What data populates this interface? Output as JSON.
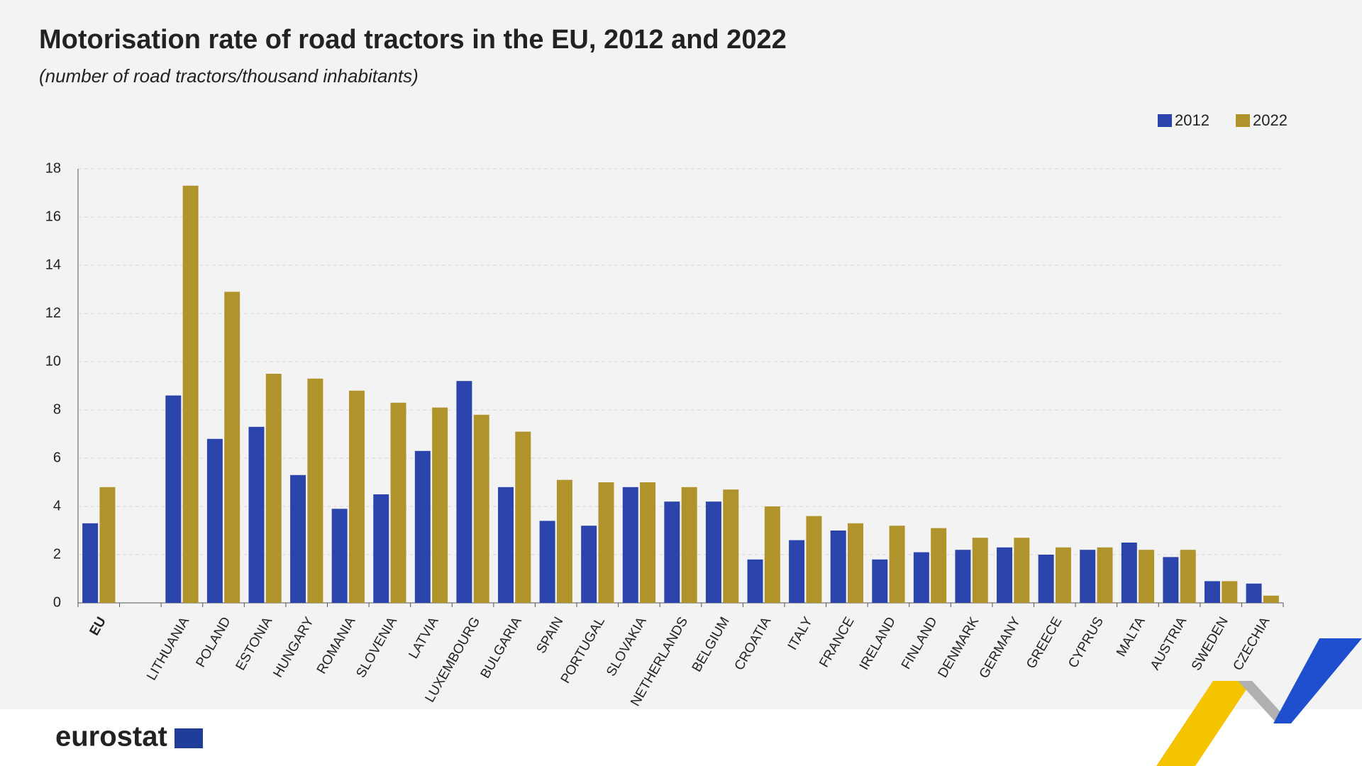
{
  "chart_data": {
    "type": "bar",
    "title": "Motorisation rate of road tractors in the EU, 2012 and 2022",
    "subtitle": "(number of road tractors/thousand inhabitants)",
    "categories": [
      "EU",
      null,
      "LITHUANIA",
      "POLAND",
      "ESTONIA",
      "HUNGARY",
      "ROMANIA",
      "SLOVENIA",
      "LATVIA",
      "LUXEMBOURG",
      "BULGARIA",
      "SPAIN",
      "PORTUGAL",
      "SLOVAKIA",
      "NETHERLANDS",
      "BELGIUM",
      "CROATIA",
      "ITALY",
      "FRANCE",
      "IRELAND",
      "FINLAND",
      "DENMARK",
      "GERMANY",
      "GREECE",
      "CYPRUS",
      "MALTA",
      "AUSTRIA",
      "SWEDEN",
      "CZECHIA"
    ],
    "series": [
      {
        "name": "2012",
        "color": "#2a44ab",
        "values": [
          3.3,
          null,
          8.6,
          6.8,
          7.3,
          5.3,
          3.9,
          4.5,
          6.3,
          9.2,
          4.8,
          3.4,
          3.2,
          4.8,
          4.2,
          4.2,
          1.8,
          2.6,
          3.0,
          1.8,
          2.1,
          2.2,
          2.3,
          2.0,
          2.2,
          2.5,
          1.9,
          0.9,
          0.8
        ]
      },
      {
        "name": "2022",
        "color": "#b0932a",
        "values": [
          4.8,
          null,
          17.3,
          12.9,
          9.5,
          9.3,
          8.8,
          8.3,
          8.1,
          7.8,
          7.1,
          5.1,
          5.0,
          5.0,
          4.8,
          4.7,
          4.0,
          3.6,
          3.3,
          3.2,
          3.1,
          2.7,
          2.7,
          2.3,
          2.3,
          2.2,
          2.2,
          0.9,
          0.3
        ]
      }
    ],
    "ylim": [
      0,
      18
    ],
    "yticks": [
      0,
      2,
      4,
      6,
      8,
      10,
      12,
      14,
      16,
      18
    ],
    "grid": true,
    "legend": "top-right",
    "logo": "eurostat"
  }
}
